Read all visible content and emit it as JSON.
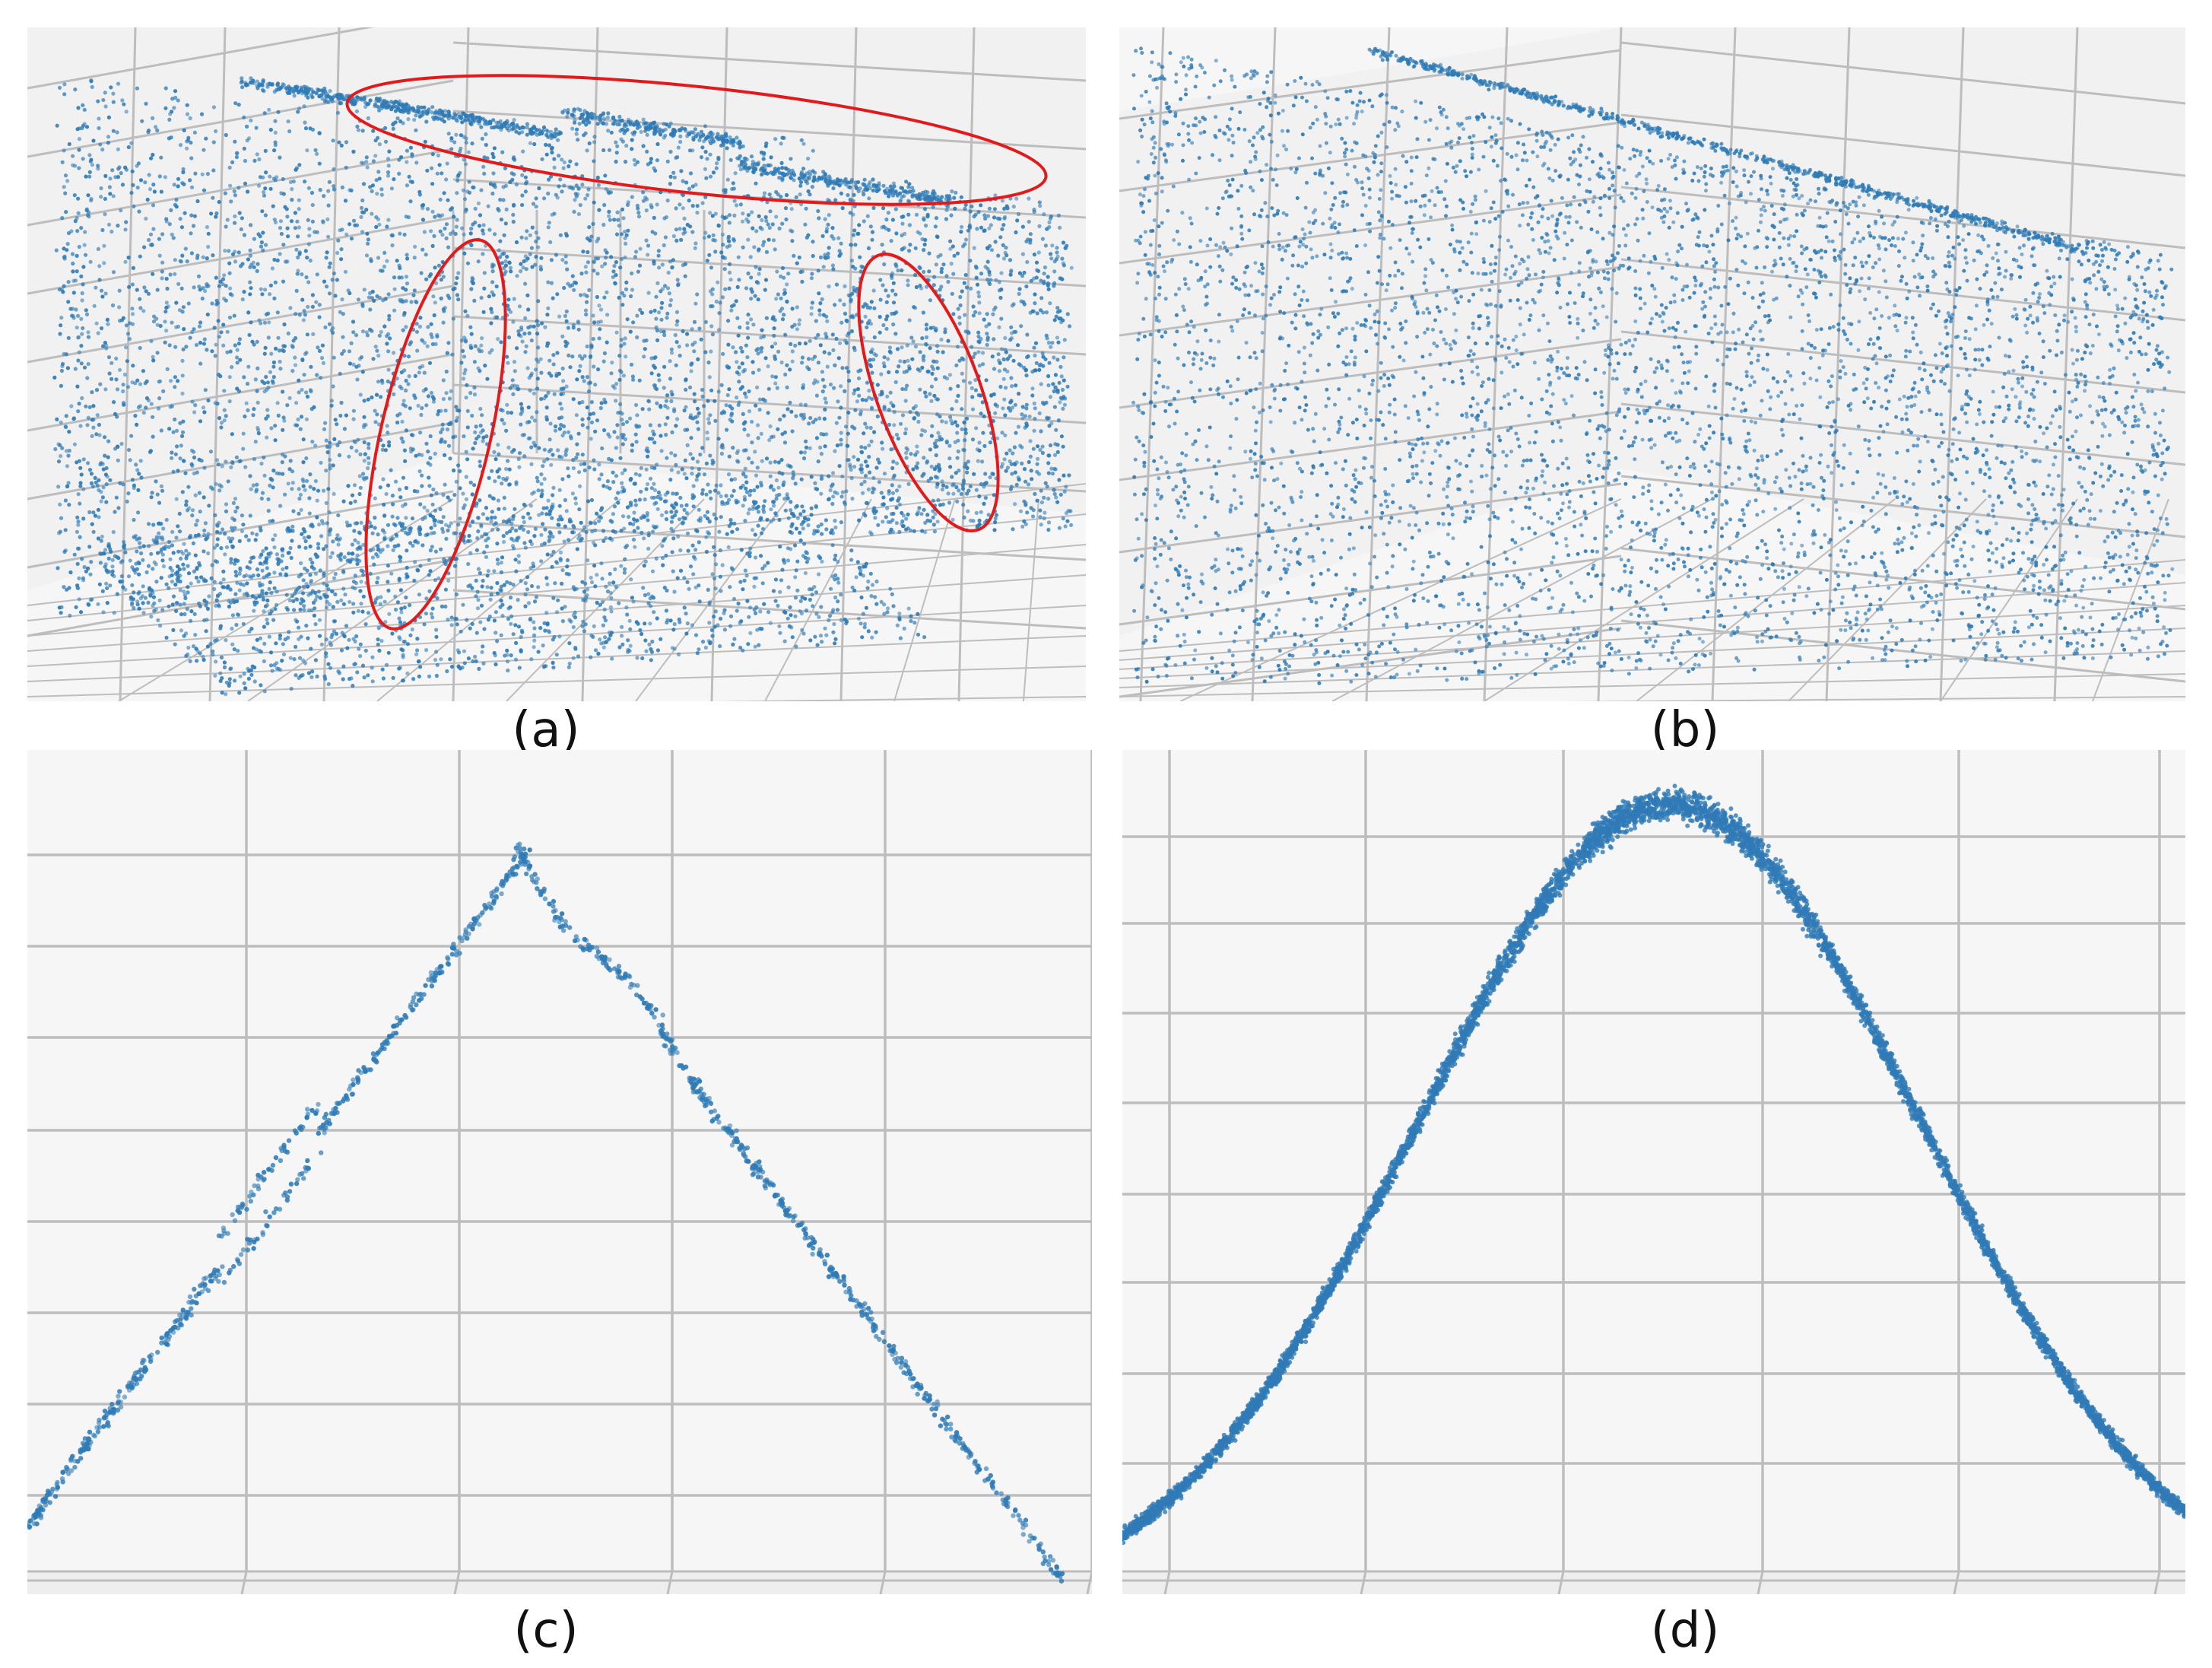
{
  "panels": [
    {
      "id": "a",
      "label": "(a)",
      "kind": "3d-point-cloud",
      "highlighted_regions": 3
    },
    {
      "id": "b",
      "label": "(b)",
      "kind": "3d-point-cloud",
      "highlighted_regions": 0
    },
    {
      "id": "c",
      "label": "(c)",
      "kind": "2d-profile-sparse"
    },
    {
      "id": "d",
      "label": "(d)",
      "kind": "2d-profile-dense"
    }
  ],
  "colors": {
    "points": "#2f7bb6",
    "highlight": "#e31a1c",
    "grid": "#bdbdbd",
    "pane": "#f3f3f3"
  }
}
